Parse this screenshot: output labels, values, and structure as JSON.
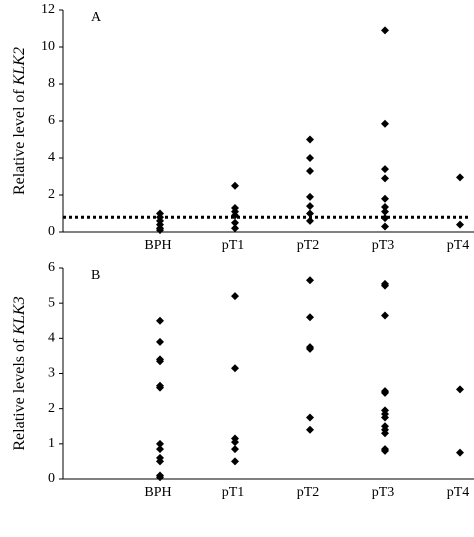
{
  "chart_data": [
    {
      "type": "strip",
      "annotation": "A",
      "ylabel": "Relative level of ",
      "ylabel_gene": "KLK2",
      "categories": [
        "BPH",
        "pT1",
        "pT2",
        "pT3",
        "pT4"
      ],
      "values": [
        [
          1.0,
          0.8,
          0.6,
          0.4,
          0.2,
          0.1
        ],
        [
          2.5,
          1.3,
          1.1,
          0.9,
          0.5,
          0.2
        ],
        [
          5.0,
          4.0,
          3.3,
          1.9,
          1.4,
          1.0,
          0.6
        ],
        [
          10.9,
          5.85,
          3.4,
          2.9,
          1.8,
          1.35,
          1.1,
          0.75,
          0.3
        ],
        [
          2.95,
          0.4
        ]
      ],
      "color": "#000000",
      "reference_line": 0.8,
      "ylim": [
        0,
        12
      ],
      "yticks": [
        0,
        2,
        4,
        6,
        8,
        10,
        12
      ]
    },
    {
      "type": "strip",
      "annotation": "B",
      "ylabel": "Relative levels of ",
      "ylabel_gene": "KLK3",
      "categories": [
        "BPH",
        "pT1",
        "pT2",
        "pT3",
        "pT4"
      ],
      "values": [
        [
          4.5,
          3.9,
          3.4,
          3.35,
          2.65,
          2.6,
          1.0,
          0.85,
          0.6,
          0.5,
          0.1,
          0.05
        ],
        [
          5.2,
          3.15,
          1.15,
          1.05,
          0.85,
          0.5
        ],
        [
          5.65,
          4.6,
          3.75,
          3.7,
          1.75,
          1.4
        ],
        [
          5.55,
          5.5,
          4.65,
          2.5,
          2.45,
          1.95,
          1.85,
          1.75,
          1.5,
          1.4,
          1.3,
          0.85,
          0.8
        ],
        [
          2.55,
          0.75
        ]
      ],
      "color": "#000000",
      "ylim": [
        0,
        6
      ],
      "yticks": [
        0,
        1,
        2,
        3,
        4,
        5,
        6
      ]
    }
  ]
}
